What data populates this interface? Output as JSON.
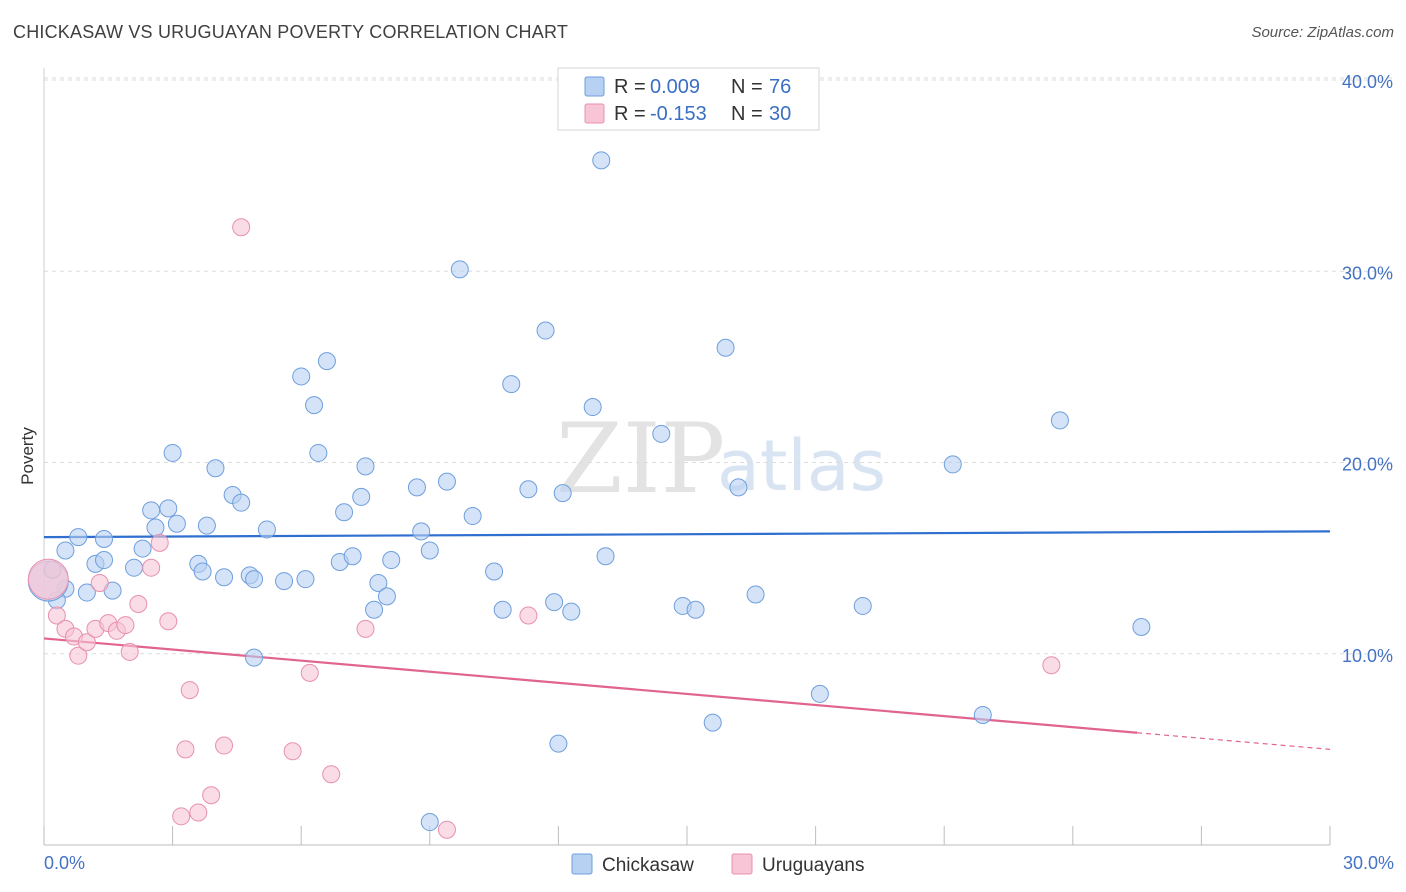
{
  "title": "CHICKASAW VS URUGUAYAN POVERTY CORRELATION CHART",
  "source": "Source: ZipAtlas.com",
  "watermark": {
    "zip": "ZIP",
    "atlas": "atlas"
  },
  "colors": {
    "blue_fill": "#b7d1f2",
    "blue_stroke": "#6f9fdc",
    "blue_line": "#2f6fcf",
    "pink_fill": "#f7c5d5",
    "pink_stroke": "#e890ad",
    "pink_line": "#e0648f",
    "grid": "#dcdcdc",
    "tick_label": "#4472c4"
  },
  "legend": {
    "rows": [
      {
        "r_label": "R = ",
        "r_value": "0.009",
        "n_label": "N = ",
        "n_value": "76"
      },
      {
        "r_label": "R = ",
        "r_value": "-0.153",
        "n_label": "N = ",
        "n_value": "30"
      }
    ]
  },
  "chart_data": {
    "type": "scatter",
    "title": "CHICKASAW VS URUGUAYAN POVERTY CORRELATION CHART",
    "xlabel": "",
    "ylabel": "Poverty",
    "xlim": [
      0,
      30
    ],
    "ylim": [
      0,
      40
    ],
    "x_tick_labels": [
      "0.0%",
      "30.0%"
    ],
    "y_ticks": [
      10,
      20,
      30,
      40
    ],
    "y_tick_labels": [
      "10.0%",
      "20.0%",
      "30.0%",
      "40.0%"
    ],
    "grid": true,
    "series": [
      {
        "name": "Chickasaw",
        "r": 0.009,
        "n": 76,
        "trend": {
          "x0": 0,
          "y0": 16.1,
          "x1": 30,
          "y1": 16.4,
          "dashed_from": null
        },
        "points": [
          [
            0.5,
            15.4
          ],
          [
            0.8,
            16.1
          ],
          [
            1.4,
            16.0
          ],
          [
            1.2,
            14.7
          ],
          [
            1.4,
            14.9
          ],
          [
            0.5,
            13.4
          ],
          [
            0.3,
            12.8
          ],
          [
            1.0,
            13.2
          ],
          [
            1.6,
            13.3
          ],
          [
            2.1,
            14.5
          ],
          [
            2.3,
            15.5
          ],
          [
            2.5,
            17.5
          ],
          [
            2.6,
            16.6
          ],
          [
            2.9,
            17.6
          ],
          [
            3.1,
            16.8
          ],
          [
            3.0,
            20.5
          ],
          [
            3.6,
            14.7
          ],
          [
            3.7,
            14.3
          ],
          [
            3.8,
            16.7
          ],
          [
            4.0,
            19.7
          ],
          [
            4.2,
            14.0
          ],
          [
            4.4,
            18.3
          ],
          [
            4.6,
            17.9
          ],
          [
            4.8,
            14.1
          ],
          [
            4.9,
            13.9
          ],
          [
            5.2,
            16.5
          ],
          [
            5.6,
            13.8
          ],
          [
            6.0,
            24.5
          ],
          [
            6.1,
            13.9
          ],
          [
            6.3,
            23.0
          ],
          [
            6.4,
            20.5
          ],
          [
            6.6,
            25.3
          ],
          [
            6.9,
            14.8
          ],
          [
            7.0,
            17.4
          ],
          [
            7.2,
            15.1
          ],
          [
            7.4,
            18.2
          ],
          [
            7.5,
            19.8
          ],
          [
            7.7,
            12.3
          ],
          [
            7.8,
            13.7
          ],
          [
            8.0,
            13.0
          ],
          [
            8.1,
            14.9
          ],
          [
            8.7,
            18.7
          ],
          [
            8.8,
            16.4
          ],
          [
            9.0,
            15.4
          ],
          [
            9.4,
            19.0
          ],
          [
            9.7,
            30.1
          ],
          [
            10.0,
            17.2
          ],
          [
            10.5,
            14.3
          ],
          [
            10.7,
            12.3
          ],
          [
            10.9,
            24.1
          ],
          [
            11.3,
            18.6
          ],
          [
            11.7,
            26.9
          ],
          [
            11.9,
            12.7
          ],
          [
            12.1,
            18.4
          ],
          [
            12.3,
            12.2
          ],
          [
            12.8,
            22.9
          ],
          [
            13.0,
            35.8
          ],
          [
            13.1,
            15.1
          ],
          [
            14.4,
            21.5
          ],
          [
            14.9,
            12.5
          ],
          [
            15.2,
            12.3
          ],
          [
            15.9,
            26.0
          ],
          [
            16.2,
            18.7
          ],
          [
            16.6,
            13.1
          ],
          [
            12.0,
            5.3
          ],
          [
            9.0,
            1.2
          ],
          [
            19.1,
            12.5
          ],
          [
            21.2,
            19.9
          ],
          [
            21.9,
            6.8
          ],
          [
            23.7,
            22.2
          ],
          [
            25.6,
            11.4
          ],
          [
            18.1,
            7.9
          ],
          [
            15.6,
            6.4
          ],
          [
            4.9,
            9.8
          ],
          [
            0.1,
            13.8
          ],
          [
            0.2,
            14.4
          ]
        ]
      },
      {
        "name": "Uruguayans",
        "r": -0.153,
        "n": 30,
        "trend": {
          "x0": 0,
          "y0": 10.8,
          "x1": 30,
          "y1": 5.0,
          "dashed_from": 25.5
        },
        "points": [
          [
            0.3,
            12.0
          ],
          [
            0.5,
            11.3
          ],
          [
            0.7,
            10.9
          ],
          [
            0.8,
            9.9
          ],
          [
            1.0,
            10.6
          ],
          [
            1.2,
            11.3
          ],
          [
            1.3,
            13.7
          ],
          [
            1.5,
            11.6
          ],
          [
            1.7,
            11.2
          ],
          [
            1.9,
            11.5
          ],
          [
            2.0,
            10.1
          ],
          [
            2.2,
            12.6
          ],
          [
            2.5,
            14.5
          ],
          [
            2.7,
            15.8
          ],
          [
            2.9,
            11.7
          ],
          [
            3.2,
            1.5
          ],
          [
            3.3,
            5.0
          ],
          [
            3.4,
            8.1
          ],
          [
            3.6,
            1.7
          ],
          [
            3.9,
            2.6
          ],
          [
            4.2,
            5.2
          ],
          [
            4.6,
            32.3
          ],
          [
            5.8,
            4.9
          ],
          [
            6.2,
            9.0
          ],
          [
            6.7,
            3.7
          ],
          [
            7.5,
            11.3
          ],
          [
            9.4,
            0.8
          ],
          [
            11.3,
            12.0
          ],
          [
            23.5,
            9.4
          ],
          [
            0.1,
            13.9
          ]
        ]
      }
    ],
    "legend_position": "top-center"
  }
}
